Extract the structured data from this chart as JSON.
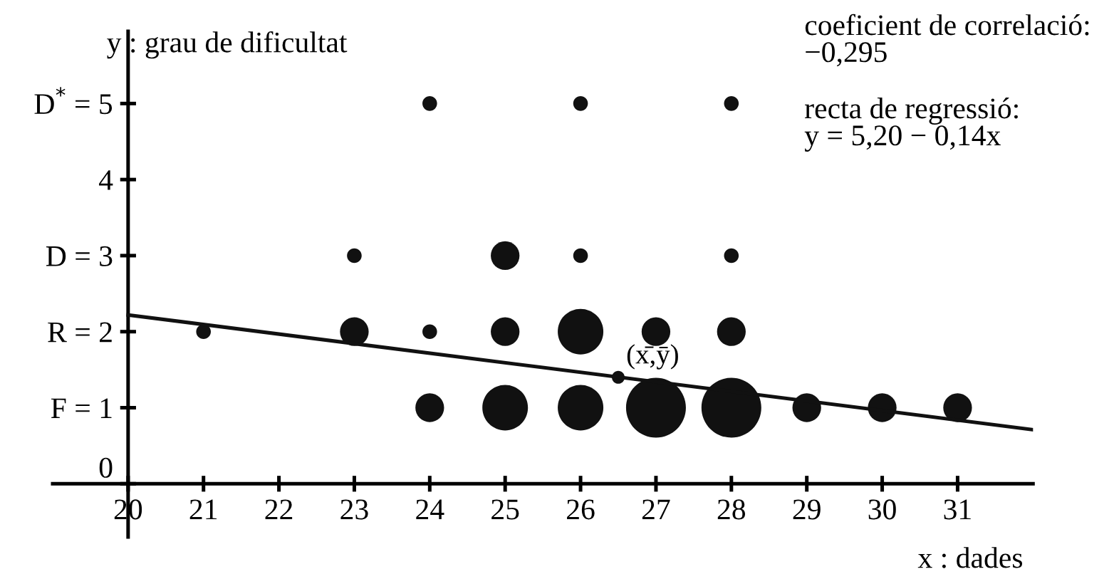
{
  "chart_data": {
    "type": "bubble",
    "xlabel": "x : dades",
    "ylabel": "y : grau de dificultat",
    "xlim": [
      19,
      32
    ],
    "ylim": [
      -0.7,
      5.95
    ],
    "xticks": [
      20,
      21,
      22,
      23,
      24,
      25,
      26,
      27,
      28,
      29,
      30,
      31
    ],
    "yticks": [
      0,
      {
        "value": 1,
        "label": "F = 1"
      },
      {
        "value": 2,
        "label": "R = 2"
      },
      {
        "value": 3,
        "label": "D = 3"
      },
      4,
      {
        "value": 5,
        "label": "D$^{*}$ = 5"
      }
    ],
    "series": [
      {
        "color": "#111111",
        "x": [
          21,
          23,
          23,
          24,
          24,
          24,
          25,
          25,
          25,
          26,
          26,
          26,
          26,
          27,
          27,
          28,
          28,
          28,
          28,
          29,
          30,
          31
        ],
        "values": [
          2,
          2,
          3,
          5,
          2,
          1,
          3,
          2,
          1,
          5,
          3,
          2,
          1,
          2,
          1,
          5,
          3,
          2,
          1,
          1,
          1,
          1
        ],
        "sizes": [
          0.06,
          0.23,
          0.06,
          0.06,
          0.06,
          0.23,
          0.23,
          0.23,
          0.58,
          0.06,
          0.06,
          0.58,
          0.58,
          0.23,
          1,
          0.06,
          0.06,
          0.23,
          1,
          0.23,
          0.23,
          0.23
        ]
      },
      {
        "type": "scatter",
        "color": "#111111",
        "x": [
          26.5
        ],
        "values": [
          1.4
        ]
      },
      {
        "type": "line",
        "color": "#111111",
        "x": [
          20,
          32
        ],
        "values": [
          2.22,
          0.71
        ]
      }
    ],
    "annotations": [
      {
        "text": "(x̄,ȳ)",
        "x": 26.5,
        "y": 1.4
      },
      "coeficient de correlació:\n−0,295",
      "recta de regressió:\ny = 5,20 − 0,14x"
    ],
    "grid": false,
    "legend": false
  }
}
